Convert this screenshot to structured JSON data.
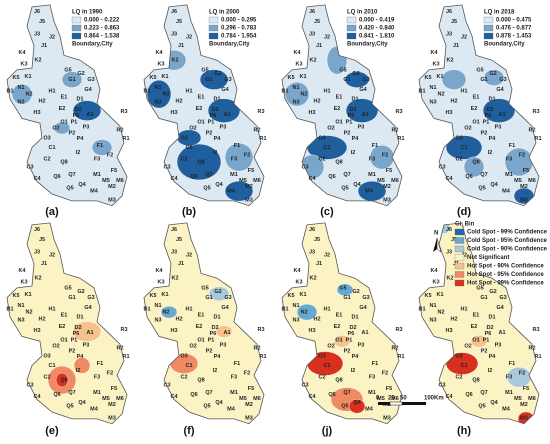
{
  "top_panels": [
    {
      "label": "(a)",
      "legend_title": "LQ in 1990",
      "classes": [
        "0.000 - 0.222",
        "0.223 - 0.863",
        "0.864 - 1.538"
      ],
      "boundary": "Boundary,City"
    },
    {
      "label": "(b)",
      "legend_title": "LQ in 2000",
      "classes": [
        "0.000 - 0.295",
        "0.296 - 0.783",
        "0.784 - 1.954"
      ],
      "boundary": "Boundary,City"
    },
    {
      "label": "(c)",
      "legend_title": "LQ in 2010",
      "classes": [
        "0.000 - 0.419",
        "0.420 - 0.840",
        "0.841 - 1.810"
      ],
      "boundary": "Boundary,City"
    },
    {
      "label": "(d)",
      "legend_title": "LQ in 2018",
      "classes": [
        "0.000 - 0.475",
        "0.476 - 0.877",
        "0.878 - 1.453"
      ],
      "boundary": "Boundary,City"
    }
  ],
  "bottom_panels": [
    {
      "label": "(e)"
    },
    {
      "label": "(f)"
    },
    {
      "label": "(j)"
    },
    {
      "label": "(h)"
    }
  ],
  "gi_legend": {
    "title": "Gi_Bin",
    "entries": [
      {
        "label": "Cold Spot - 99% Confidence",
        "color": "#2166ac"
      },
      {
        "label": "Cold Spot - 95% Confidence",
        "color": "#67a9cf"
      },
      {
        "label": "Cold Spot - 90% Confidence",
        "color": "#a8c8dc"
      },
      {
        "label": "Not Significant",
        "color": "#fbf3c4"
      },
      {
        "label": "Hot Spot - 90% Confidence",
        "color": "#f6c28b"
      },
      {
        "label": "Hot Spot - 95% Confidence",
        "color": "#ef8a62"
      },
      {
        "label": "Hot Spot - 99% Confidence",
        "color": "#d7301f"
      }
    ]
  },
  "north": "N",
  "scale_labels": [
    "0",
    "25",
    "50",
    "100",
    "Km"
  ],
  "district_labels": [
    "J6",
    "J5",
    "J3",
    "J2",
    "J1",
    "K4",
    "K3",
    "K2",
    "K5",
    "K1",
    "N1",
    "N2",
    "N3",
    "G5",
    "G2",
    "G3",
    "G1",
    "G4",
    "H1",
    "H2",
    "H3",
    "E1",
    "E2",
    "D1",
    "D2",
    "A1",
    "B1",
    "O1",
    "O2",
    "O3",
    "P1",
    "P2",
    "P3",
    "P4",
    "P6",
    "R3",
    "R2",
    "R1",
    "C1",
    "C2",
    "C3",
    "C4",
    "Q8",
    "I2",
    "F1",
    "F2",
    "F3",
    "F5",
    "M1",
    "M2",
    "M3",
    "M4",
    "M5",
    "M6",
    "Q4",
    "Q5",
    "Q6",
    "Q7"
  ]
}
